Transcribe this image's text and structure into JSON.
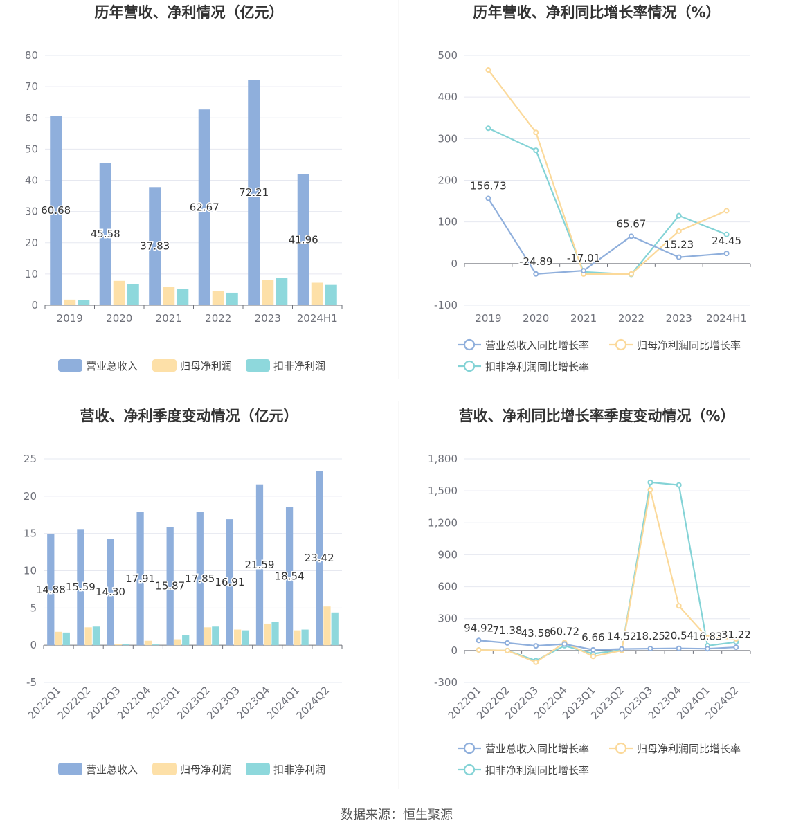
{
  "source_text": "数据来源：恒生聚源",
  "colors": {
    "revenue": "#8fafdc",
    "net_profit": "#fde0a8",
    "deducted_net_profit": "#8ed8dc",
    "revenue_line": "#8fafdc",
    "net_profit_line": "#fbd99a",
    "deducted_line": "#84d3d6",
    "grid": "#e6e8f0",
    "axis": "#6e7079"
  },
  "chart_data": [
    {
      "type": "bar",
      "title": "历年营收、净利情况（亿元）",
      "categories": [
        "2019",
        "2020",
        "2021",
        "2022",
        "2023",
        "2024H1"
      ],
      "ylim": [
        0,
        80
      ],
      "yticks": [
        0,
        10,
        20,
        30,
        40,
        50,
        60,
        70,
        80
      ],
      "series": [
        {
          "name": "营业总收入",
          "values": [
            60.68,
            45.58,
            37.83,
            62.67,
            72.21,
            41.96
          ],
          "labels": [
            "60.68",
            "45.58",
            "37.83",
            "62.67",
            "72.21",
            "41.96"
          ]
        },
        {
          "name": "归母净利润",
          "values": [
            1.8,
            7.8,
            5.8,
            4.5,
            8.0,
            7.2
          ]
        },
        {
          "name": "扣非净利润",
          "values": [
            1.7,
            6.8,
            5.3,
            4.0,
            8.7,
            6.5
          ]
        }
      ],
      "legend_position": "bottom"
    },
    {
      "type": "line",
      "title": "历年营收、净利同比增长率情况（%）",
      "categories": [
        "2019",
        "2020",
        "2021",
        "2022",
        "2023",
        "2024H1"
      ],
      "ylim": [
        -100,
        500
      ],
      "yticks": [
        -100,
        0,
        100,
        200,
        300,
        400,
        500
      ],
      "series": [
        {
          "name": "营业总收入同比增长率",
          "values": [
            156.73,
            -24.89,
            -17.01,
            65.67,
            15.23,
            24.45
          ],
          "labels": [
            "156.73",
            "-24.89",
            "-17.01",
            "65.67",
            "15.23",
            "24.45"
          ]
        },
        {
          "name": "归母净利润同比增长率",
          "values": [
            465,
            315,
            -25,
            -25,
            78,
            127
          ]
        },
        {
          "name": "扣非净利润同比增长率",
          "values": [
            325,
            272,
            -20,
            -26,
            115,
            70
          ]
        }
      ],
      "legend_position": "bottom"
    },
    {
      "type": "bar",
      "title": "营收、净利季度变动情况（亿元）",
      "categories": [
        "2022Q1",
        "2022Q2",
        "2022Q3",
        "2022Q4",
        "2023Q1",
        "2023Q2",
        "2023Q3",
        "2023Q4",
        "2024Q1",
        "2024Q2"
      ],
      "ylim": [
        -5,
        25
      ],
      "yticks": [
        -5,
        0,
        5,
        10,
        15,
        20,
        25
      ],
      "series": [
        {
          "name": "营业总收入",
          "values": [
            14.88,
            15.59,
            14.3,
            17.91,
            15.87,
            17.85,
            16.91,
            21.59,
            18.54,
            23.42
          ],
          "labels": [
            "14.88",
            "15.59",
            "14.30",
            "17.91",
            "15.87",
            "17.85",
            "16.91",
            "21.59",
            "18.54",
            "23.42"
          ]
        },
        {
          "name": "归母净利润",
          "values": [
            1.8,
            2.4,
            0.15,
            0.6,
            0.8,
            2.4,
            2.1,
            2.9,
            2.0,
            5.2
          ]
        },
        {
          "name": "扣非净利润",
          "values": [
            1.7,
            2.5,
            0.2,
            0.1,
            1.4,
            2.5,
            2.0,
            3.1,
            2.1,
            4.4
          ]
        }
      ],
      "legend_position": "bottom"
    },
    {
      "type": "line",
      "title": "营收、净利同比增长率季度变动情况（%）",
      "categories": [
        "2022Q1",
        "2022Q2",
        "2022Q3",
        "2022Q4",
        "2023Q1",
        "2023Q2",
        "2023Q3",
        "2023Q4",
        "2024Q1",
        "2024Q2"
      ],
      "ylim": [
        -300,
        1800
      ],
      "yticks": [
        -300,
        0,
        300,
        600,
        900,
        1200,
        1500,
        1800
      ],
      "ytick_labels": [
        "-300",
        "0",
        "300",
        "600",
        "900",
        "1,200",
        "1,500",
        "1,800"
      ],
      "series": [
        {
          "name": "营业总收入同比增长率",
          "values": [
            94.92,
            71.38,
            43.58,
            60.72,
            6.66,
            14.52,
            18.25,
            20.54,
            16.83,
            31.22
          ],
          "labels": [
            "94.92",
            "71.38",
            "43.58",
            "60.72",
            "6.66",
            "14.52",
            "18.25",
            "20.54",
            "16.83",
            "31.22"
          ]
        },
        {
          "name": "归母净利润同比增长率",
          "values": [
            5,
            0,
            -110,
            75,
            -55,
            0,
            1510,
            420,
            120,
            110
          ]
        },
        {
          "name": "扣非净利润同比增长率",
          "values": [
            5,
            0,
            -95,
            45,
            -30,
            5,
            1580,
            1555,
            45,
            80
          ]
        }
      ],
      "legend_position": "bottom"
    }
  ]
}
